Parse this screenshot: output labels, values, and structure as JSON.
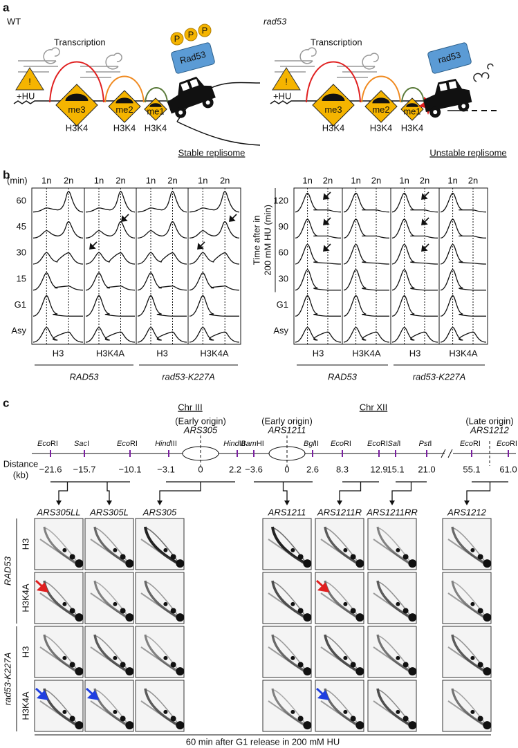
{
  "panel_labels": {
    "a": "a",
    "b": "b",
    "c": "c"
  },
  "panel_a": {
    "left": {
      "genotype": "WT",
      "transcription": "Transcription",
      "warning": "!",
      "stress": "+HU",
      "marks": [
        "me3",
        "me2",
        "me1"
      ],
      "histone": [
        "H3K4",
        "H3K4",
        "H3K4"
      ],
      "kinase": "Rad53",
      "phospho": [
        "P",
        "P",
        "P"
      ],
      "replisome": "Stable replisome"
    },
    "right": {
      "genotype": "rad53",
      "transcription": "Transcription",
      "warning": "!",
      "stress": "+HU",
      "marks": [
        "me3",
        "me2",
        "me1"
      ],
      "histone": [
        "H3K4",
        "H3K4",
        "H3K4"
      ],
      "kinase": "rad53",
      "replisome": "Unstable replisome"
    }
  },
  "panel_b": {
    "left": {
      "time_unit": "(min)",
      "ploidy": [
        "1n",
        "2n"
      ],
      "rows": [
        "60",
        "45",
        "30",
        "15",
        "G1",
        "Asy"
      ],
      "columns": [
        "H3",
        "H3K4A",
        "H3",
        "H3K4A"
      ],
      "groups": [
        "RAD53",
        "rad53-K227A"
      ]
    },
    "right": {
      "axis_label": [
        "Time after in",
        "200 mM HU (min)"
      ],
      "ploidy": [
        "1n",
        "2n"
      ],
      "rows": [
        "120",
        "90",
        "60",
        "30",
        "G1",
        "Asy"
      ],
      "columns": [
        "H3",
        "H3K4A",
        "H3",
        "H3K4A"
      ],
      "groups": [
        "RAD53",
        "rad53-K227A"
      ]
    }
  },
  "panel_c": {
    "distance_label": [
      "Distance",
      "(kb)"
    ],
    "chr3": {
      "title": "Chr III",
      "origin": {
        "note": "(Early origin)",
        "name": "ARS305"
      },
      "sites": [
        {
          "italic": "Eco",
          "roman": "RI"
        },
        {
          "italic": "Sac",
          "roman": "I"
        },
        {
          "italic": "Eco",
          "roman": "RI"
        },
        {
          "italic": "Hind",
          "roman": "III"
        },
        {
          "italic": "Hind",
          "roman": "III"
        }
      ],
      "distances": [
        "−21.6",
        "−15.7",
        "−10.1",
        "−3.1",
        "0",
        "2.2"
      ]
    },
    "chr12": {
      "title": "Chr XII",
      "origins": [
        {
          "note": "(Early origin)",
          "name": "ARS1211"
        },
        {
          "note": "(Late origin)",
          "name": "ARS1212"
        }
      ],
      "sites": [
        {
          "italic": "Bam",
          "roman": "HI"
        },
        {
          "italic": "Bgl",
          "roman": "II"
        },
        {
          "italic": "Eco",
          "roman": "RI"
        },
        {
          "italic": "Eco",
          "roman": "RI"
        },
        {
          "italic": "Sal",
          "roman": "I"
        },
        {
          "italic": "Pst",
          "roman": "I"
        },
        {
          "italic": "Eco",
          "roman": "RI"
        },
        {
          "italic": "Eco",
          "roman": "RI"
        }
      ],
      "distances": [
        "−3.6",
        "0",
        "2.6",
        "8.3",
        "12.9",
        "15.1",
        "21.0",
        "55.1",
        "61.0"
      ]
    },
    "probes": [
      "ARS305LL",
      "ARS305L",
      "ARS305",
      "ARS1211",
      "ARS1211R",
      "ARS1211RR",
      "ARS1212"
    ],
    "rows": [
      "H3",
      "H3K4A",
      "H3",
      "H3K4A"
    ],
    "groups": [
      "RAD53",
      "rad53-K227A"
    ],
    "footer": "60 min after G1 release in 200 mM HU"
  }
}
